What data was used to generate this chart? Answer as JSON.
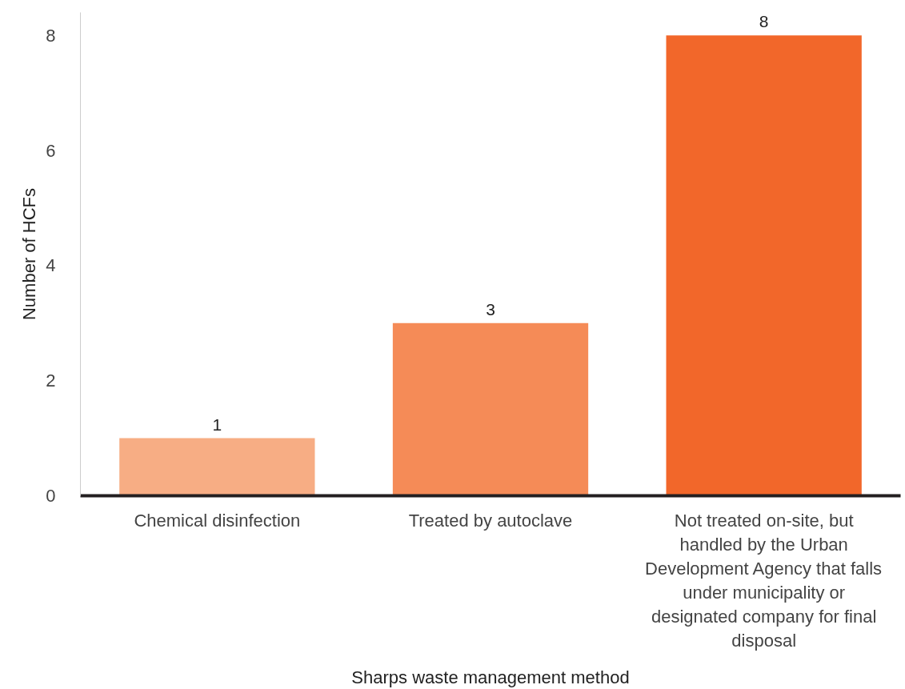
{
  "chart_data": {
    "type": "bar",
    "xlabel": "Sharps waste management method",
    "ylabel": "Number of HCFs",
    "categories": [
      "Chemical disinfection",
      "Treated by autoclave",
      "Not treated on-site, but handled by the Urban Development Agency that falls under municipality or designated company for final disposal"
    ],
    "values": [
      1,
      3,
      8
    ],
    "colors": [
      "#f7ad84",
      "#f58b57",
      "#f2672a"
    ],
    "ylim": [
      0,
      8.4
    ],
    "yticks": [
      0,
      2,
      4,
      6,
      8
    ],
    "grid": false,
    "data_labels": true
  }
}
